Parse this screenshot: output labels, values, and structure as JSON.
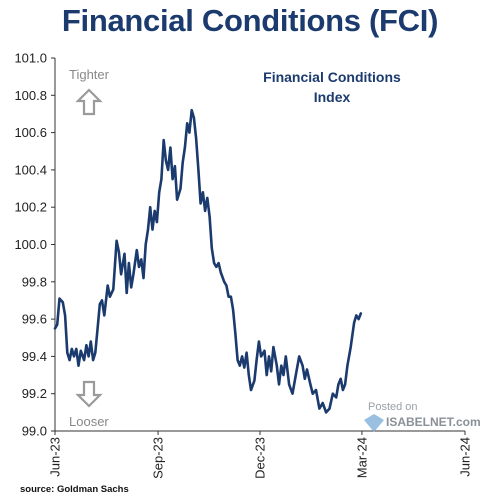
{
  "page": {
    "title": "Financial Conditions (FCI)",
    "source": "source: Goldman Sachs"
  },
  "colors": {
    "line": "#1b3a6e",
    "title": "#1b3a6e",
    "arrow": "#9a9a9a",
    "axis": "#333333"
  },
  "watermark": {
    "line1": "Posted on",
    "line2": "ISABELNET.com",
    "icon": "isabelnet-logo-icon"
  },
  "chart_data": {
    "type": "line",
    "title": "Financial Conditions Index",
    "title_lines": [
      "Financial Conditions",
      "Index"
    ],
    "xlabel": "",
    "ylabel": "",
    "ylim": [
      99.0,
      101.0
    ],
    "yticks": [
      "99.0",
      "99.2",
      "99.4",
      "99.6",
      "99.8",
      "100.0",
      "100.2",
      "100.4",
      "100.6",
      "100.8",
      "101.0"
    ],
    "xlim": [
      "2023-06-01",
      "2024-06-01"
    ],
    "xticks": [
      "Jun-23",
      "Sep-23",
      "Dec-23",
      "Mar-24",
      "Jun-24"
    ],
    "grid": false,
    "annotations": {
      "top": "Tighter",
      "bottom": "Looser",
      "top_icon": "up-arrow-icon",
      "bottom_icon": "down-arrow-icon"
    },
    "series": [
      {
        "points": [
          [
            "2023-06-01",
            99.55
          ],
          [
            "2023-06-03",
            99.57
          ],
          [
            "2023-06-05",
            99.71
          ],
          [
            "2023-06-08",
            99.69
          ],
          [
            "2023-06-10",
            99.62
          ],
          [
            "2023-06-12",
            99.42
          ],
          [
            "2023-06-14",
            99.38
          ],
          [
            "2023-06-16",
            99.44
          ],
          [
            "2023-06-18",
            99.4
          ],
          [
            "2023-06-20",
            99.44
          ],
          [
            "2023-06-22",
            99.35
          ],
          [
            "2023-06-24",
            99.43
          ],
          [
            "2023-06-27",
            99.38
          ],
          [
            "2023-06-29",
            99.46
          ],
          [
            "2023-07-01",
            99.4
          ],
          [
            "2023-07-03",
            99.48
          ],
          [
            "2023-07-05",
            99.38
          ],
          [
            "2023-07-07",
            99.42
          ],
          [
            "2023-07-09",
            99.55
          ],
          [
            "2023-07-11",
            99.68
          ],
          [
            "2023-07-13",
            99.7
          ],
          [
            "2023-07-15",
            99.62
          ],
          [
            "2023-07-18",
            99.78
          ],
          [
            "2023-07-20",
            99.72
          ],
          [
            "2023-07-23",
            99.76
          ],
          [
            "2023-07-26",
            100.02
          ],
          [
            "2023-07-28",
            99.96
          ],
          [
            "2023-07-30",
            99.84
          ],
          [
            "2023-08-02",
            99.95
          ],
          [
            "2023-08-04",
            99.74
          ],
          [
            "2023-08-06",
            99.9
          ],
          [
            "2023-08-08",
            99.77
          ],
          [
            "2023-08-10",
            99.84
          ],
          [
            "2023-08-13",
            99.97
          ],
          [
            "2023-08-15",
            99.88
          ],
          [
            "2023-08-17",
            99.92
          ],
          [
            "2023-08-19",
            99.82
          ],
          [
            "2023-08-21",
            100.0
          ],
          [
            "2023-08-23",
            100.08
          ],
          [
            "2023-08-25",
            100.2
          ],
          [
            "2023-08-27",
            100.08
          ],
          [
            "2023-08-29",
            100.18
          ],
          [
            "2023-08-31",
            100.12
          ],
          [
            "2023-09-02",
            100.28
          ],
          [
            "2023-09-04",
            100.35
          ],
          [
            "2023-09-06",
            100.56
          ],
          [
            "2023-09-08",
            100.45
          ],
          [
            "2023-09-10",
            100.4
          ],
          [
            "2023-09-12",
            100.52
          ],
          [
            "2023-09-14",
            100.35
          ],
          [
            "2023-09-16",
            100.42
          ],
          [
            "2023-09-18",
            100.24
          ],
          [
            "2023-09-21",
            100.3
          ],
          [
            "2023-09-23",
            100.44
          ],
          [
            "2023-09-25",
            100.52
          ],
          [
            "2023-09-27",
            100.65
          ],
          [
            "2023-09-29",
            100.6
          ],
          [
            "2023-10-01",
            100.72
          ],
          [
            "2023-10-03",
            100.68
          ],
          [
            "2023-10-05",
            100.57
          ],
          [
            "2023-10-07",
            100.4
          ],
          [
            "2023-10-09",
            100.22
          ],
          [
            "2023-10-11",
            100.28
          ],
          [
            "2023-10-13",
            100.18
          ],
          [
            "2023-10-15",
            100.25
          ],
          [
            "2023-10-17",
            100.15
          ],
          [
            "2023-10-19",
            99.98
          ],
          [
            "2023-10-21",
            99.9
          ],
          [
            "2023-10-23",
            99.88
          ],
          [
            "2023-10-25",
            99.9
          ],
          [
            "2023-10-27",
            99.85
          ],
          [
            "2023-10-30",
            99.8
          ],
          [
            "2023-11-01",
            99.78
          ],
          [
            "2023-11-03",
            99.72
          ],
          [
            "2023-11-05",
            99.72
          ],
          [
            "2023-11-07",
            99.65
          ],
          [
            "2023-11-09",
            99.52
          ],
          [
            "2023-11-11",
            99.38
          ],
          [
            "2023-11-13",
            99.35
          ],
          [
            "2023-11-15",
            99.4
          ],
          [
            "2023-11-17",
            99.34
          ],
          [
            "2023-11-19",
            99.42
          ],
          [
            "2023-11-21",
            99.3
          ],
          [
            "2023-11-23",
            99.22
          ],
          [
            "2023-11-26",
            99.27
          ],
          [
            "2023-11-28",
            99.38
          ],
          [
            "2023-11-30",
            99.48
          ],
          [
            "2023-12-02",
            99.4
          ],
          [
            "2023-12-05",
            99.43
          ],
          [
            "2023-12-07",
            99.3
          ],
          [
            "2023-12-09",
            99.4
          ],
          [
            "2023-12-11",
            99.32
          ],
          [
            "2023-12-13",
            99.45
          ],
          [
            "2023-12-16",
            99.35
          ],
          [
            "2023-12-18",
            99.25
          ],
          [
            "2023-12-20",
            99.35
          ],
          [
            "2023-12-22",
            99.3
          ],
          [
            "2023-12-24",
            99.4
          ],
          [
            "2023-12-27",
            99.25
          ],
          [
            "2023-12-30",
            99.2
          ],
          [
            "2024-01-02",
            99.3
          ],
          [
            "2024-01-05",
            99.4
          ],
          [
            "2024-01-08",
            99.35
          ],
          [
            "2024-01-10",
            99.28
          ],
          [
            "2024-01-12",
            99.33
          ],
          [
            "2024-01-15",
            99.25
          ],
          [
            "2024-01-17",
            99.2
          ],
          [
            "2024-01-20",
            99.22
          ],
          [
            "2024-01-23",
            99.12
          ],
          [
            "2024-01-26",
            99.15
          ],
          [
            "2024-01-29",
            99.1
          ],
          [
            "2024-02-01",
            99.12
          ],
          [
            "2024-02-04",
            99.2
          ],
          [
            "2024-02-07",
            99.18
          ],
          [
            "2024-02-09",
            99.25
          ],
          [
            "2024-02-11",
            99.28
          ],
          [
            "2024-02-13",
            99.22
          ],
          [
            "2024-02-15",
            99.25
          ],
          [
            "2024-02-17",
            99.35
          ],
          [
            "2024-02-20",
            99.45
          ],
          [
            "2024-02-23",
            99.58
          ],
          [
            "2024-02-25",
            99.62
          ],
          [
            "2024-02-27",
            99.6
          ],
          [
            "2024-02-29",
            99.63
          ]
        ]
      }
    ]
  }
}
